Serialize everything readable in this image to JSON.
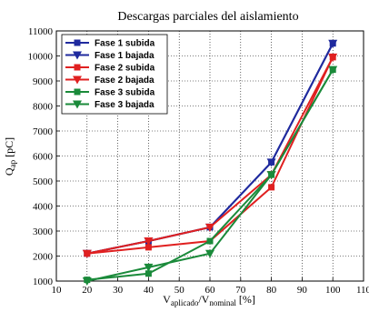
{
  "chart_data": {
    "type": "line",
    "title": "Descargas parciales del aislamiento",
    "xlabel": {
      "main": "V",
      "sub1": "aplicado",
      "sep": "/V",
      "sub2": "nominal",
      "unit": " [%]"
    },
    "ylabel": {
      "main": "Q",
      "sub": "ap",
      "unit": " [pC]"
    },
    "xlim": [
      10,
      110
    ],
    "ylim": [
      1000,
      11000
    ],
    "xticks": [
      10,
      20,
      30,
      40,
      50,
      60,
      70,
      80,
      90,
      100,
      110
    ],
    "yticks": [
      1000,
      2000,
      3000,
      4000,
      5000,
      6000,
      7000,
      8000,
      9000,
      10000,
      11000
    ],
    "grid": true,
    "legend_position": "top-left",
    "series": [
      {
        "name": "Fase 1 subida",
        "color": "#1f2a9e",
        "marker": "square",
        "x": [
          20,
          40,
          60,
          80,
          100
        ],
        "y": [
          2100,
          2600,
          3150,
          5750,
          10500
        ]
      },
      {
        "name": "Fase 1 bajada",
        "color": "#1f2a9e",
        "marker": "triangle-down",
        "x": [
          20,
          40,
          60,
          80,
          100
        ],
        "y": [
          2100,
          2600,
          3150,
          5750,
          10500
        ]
      },
      {
        "name": "Fase 2 subida",
        "color": "#e02020",
        "marker": "square",
        "x": [
          20,
          40,
          60,
          80,
          100
        ],
        "y": [
          2100,
          2350,
          2600,
          4750,
          9950
        ]
      },
      {
        "name": "Fase 2 bajada",
        "color": "#e02020",
        "marker": "triangle-down",
        "x": [
          20,
          40,
          60,
          80,
          100
        ],
        "y": [
          2100,
          2600,
          3150,
          5250,
          9950
        ]
      },
      {
        "name": "Fase 3 subida",
        "color": "#1a8a3a",
        "marker": "square",
        "x": [
          20,
          40,
          60,
          80,
          100
        ],
        "y": [
          1050,
          1300,
          2600,
          5250,
          9450
        ]
      },
      {
        "name": "Fase 3 bajada",
        "color": "#1a8a3a",
        "marker": "triangle-down",
        "x": [
          20,
          40,
          60,
          80,
          100
        ],
        "y": [
          1000,
          1550,
          2100,
          5250,
          9450
        ]
      }
    ]
  }
}
